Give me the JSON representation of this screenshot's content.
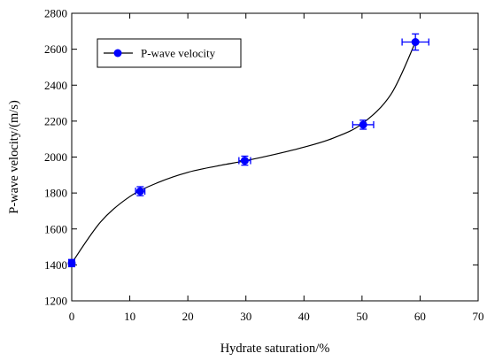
{
  "chart_data": {
    "type": "line",
    "xlabel": "Hydrate saturation/%",
    "ylabel": "P-wave velocity/(m/s)",
    "xlim": [
      0,
      70
    ],
    "ylim": [
      1200,
      2800
    ],
    "xticks": [
      0,
      10,
      20,
      30,
      40,
      50,
      60,
      70
    ],
    "yticks": [
      1200,
      1400,
      1600,
      1800,
      2000,
      2200,
      2400,
      2600,
      2800
    ],
    "grid": false,
    "legend_position": "top-left",
    "series": [
      {
        "name": "P-wave velocity",
        "color": "#0000ff",
        "marker": "circle",
        "points": [
          {
            "x": 0,
            "y": 1410,
            "x_err": 0.5,
            "y_err": 20
          },
          {
            "x": 11.8,
            "y": 1810,
            "x_err": 0.8,
            "y_err": 25
          },
          {
            "x": 29.8,
            "y": 1980,
            "x_err": 1.0,
            "y_err": 25
          },
          {
            "x": 50.2,
            "y": 2180,
            "x_err": 1.8,
            "y_err": 25
          },
          {
            "x": 59.2,
            "y": 2640,
            "x_err": 2.3,
            "y_err": 45
          }
        ]
      }
    ],
    "fit_curve": {
      "color": "#000000",
      "x": [
        0,
        5,
        10,
        15,
        20,
        25,
        30,
        35,
        40,
        45,
        50,
        55,
        59.2
      ],
      "y": [
        1410,
        1640,
        1780,
        1860,
        1915,
        1950,
        1980,
        2015,
        2055,
        2105,
        2185,
        2350,
        2640
      ]
    }
  }
}
